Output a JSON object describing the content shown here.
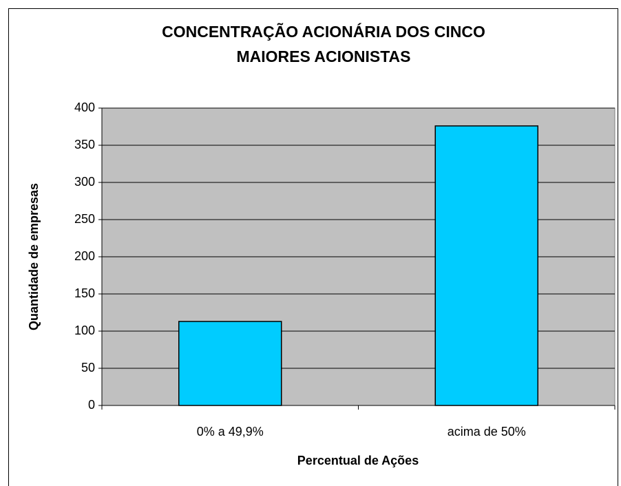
{
  "chart_data": {
    "type": "bar",
    "title": [
      "CONCENTRAÇÃO ACIONÁRIA DOS CINCO",
      "MAIORES ACIONISTAS"
    ],
    "x_label": "Percentual de Ações",
    "y_label": "Quantidade de empresas",
    "categories": [
      "0% a 49,9%",
      "acima de 50%"
    ],
    "values": [
      113,
      376
    ],
    "color": "#00ccff",
    "ylim": [
      0,
      400
    ],
    "yticks": [
      0,
      50,
      100,
      150,
      200,
      250,
      300,
      350,
      400
    ],
    "grid": true
  }
}
